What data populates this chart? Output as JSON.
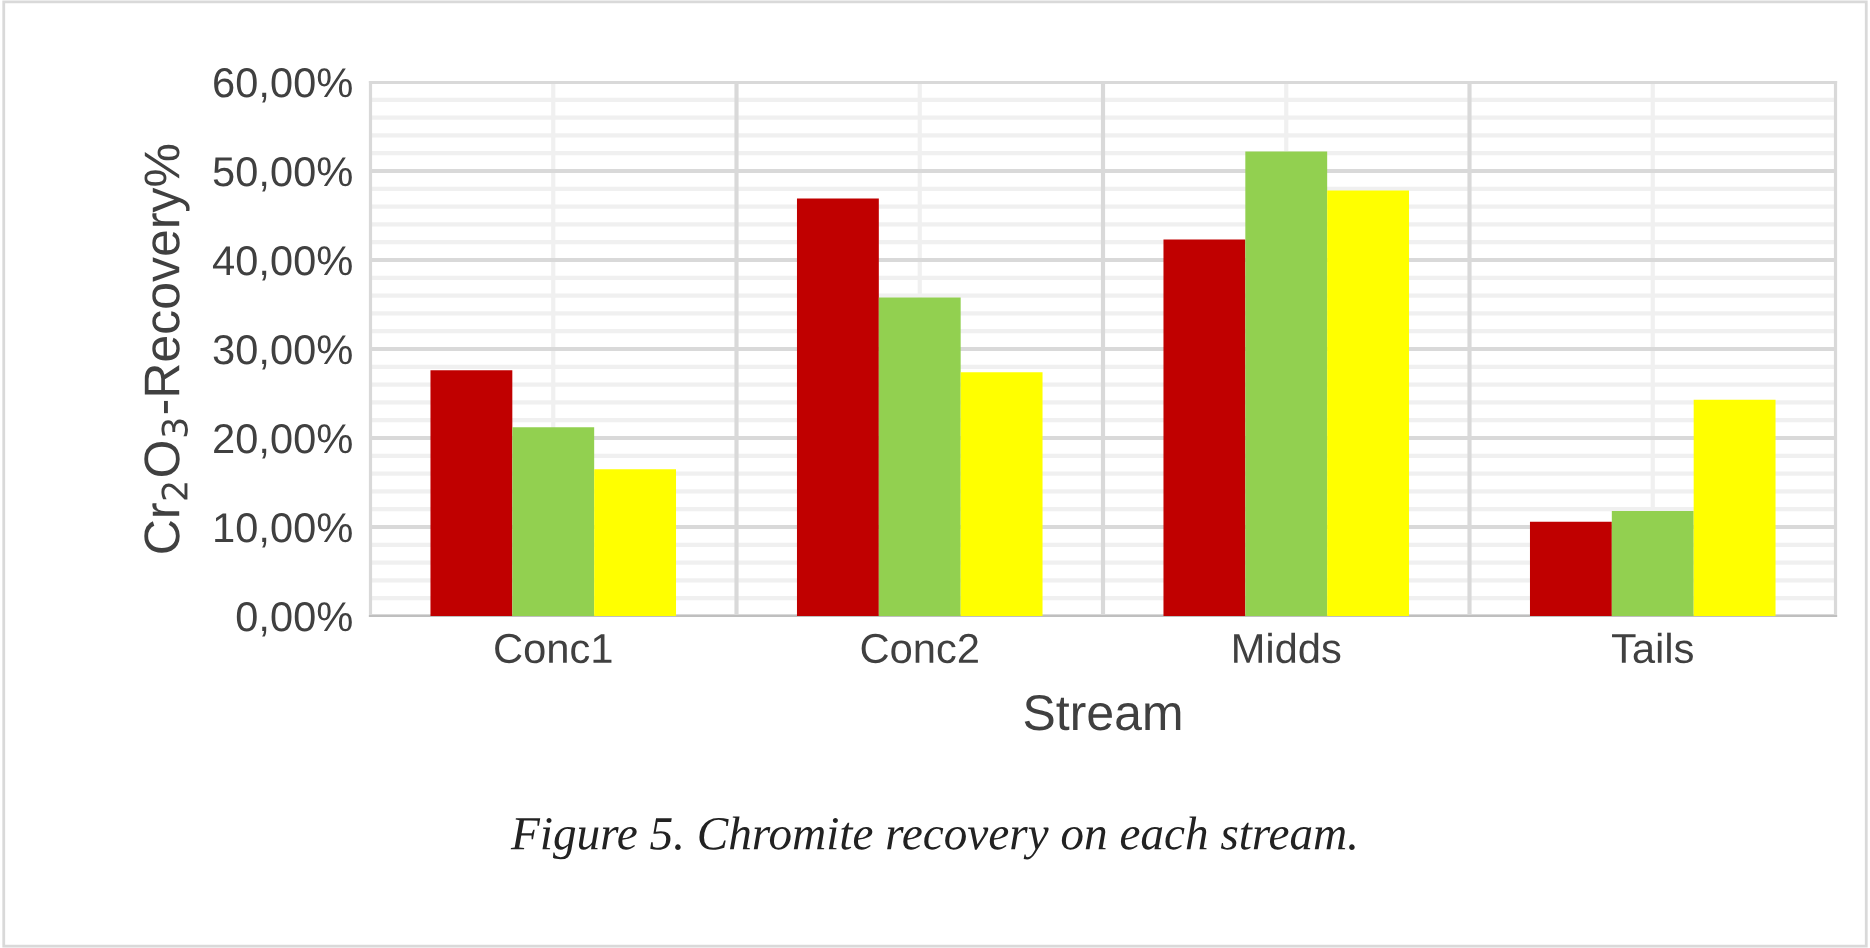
{
  "chart_data": {
    "type": "bar",
    "xlabel": "Stream",
    "ylabel": "Cr$_{2}$O$_{3}$-Recovery%",
    "categories": [
      "Conc1",
      "Conc2",
      "Midds",
      "Tails"
    ],
    "series": [
      {
        "color": "#c00000",
        "values": [
          27.6,
          46.9,
          42.3,
          10.6
        ]
      },
      {
        "color": "#92d050",
        "values": [
          21.2,
          35.8,
          52.2,
          11.8
        ]
      },
      {
        "color": "#ffff00",
        "values": [
          16.5,
          27.4,
          47.8,
          24.3
        ]
      }
    ],
    "ylim": [
      0,
      60
    ],
    "yticks": [
      {
        "value": 0,
        "label": "0,00%"
      },
      {
        "value": 10,
        "label": "10,00%"
      },
      {
        "value": 20,
        "label": "20,00%"
      },
      {
        "value": 30,
        "label": "30,00%"
      },
      {
        "value": 40,
        "label": "40,00%"
      },
      {
        "value": 50,
        "label": "50,00%"
      },
      {
        "value": 60,
        "label": "60,00%"
      }
    ],
    "grid": true,
    "annotations": [
      "Figure 5. Chromite recovery on each stream."
    ]
  }
}
